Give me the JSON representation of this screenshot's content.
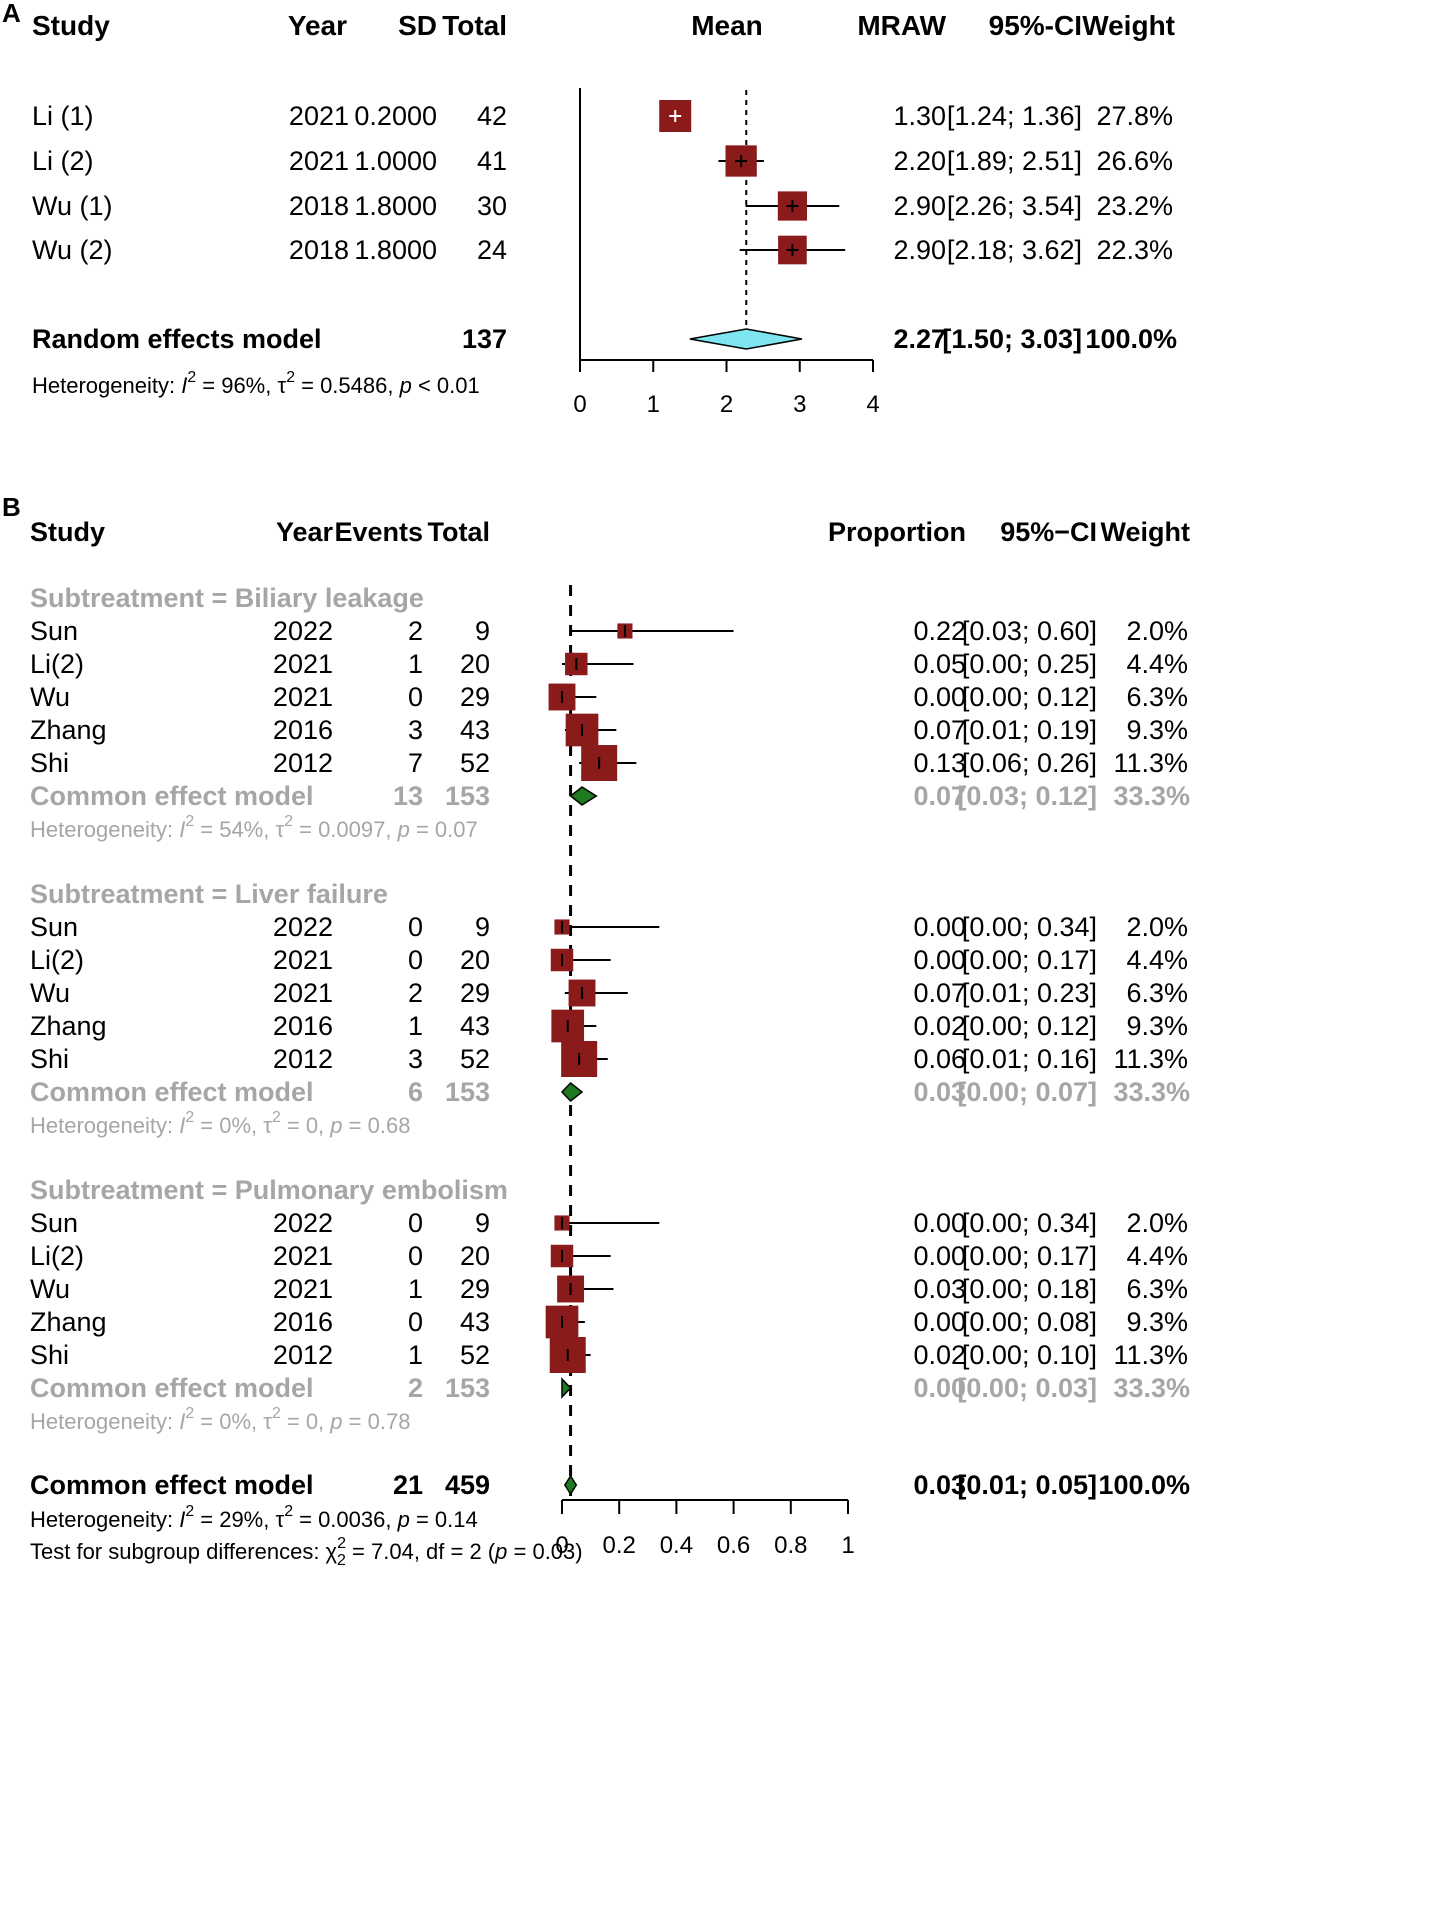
{
  "chart_data": [
    {
      "type": "forest",
      "panel_label": "A",
      "columns": {
        "study": "Study",
        "year": "Year",
        "sd": "SD",
        "total": "Total",
        "plot": "Mean",
        "estimate": "MRAW",
        "ci": "95%-CI",
        "weight": "Weight"
      },
      "studies": [
        {
          "study": "Li (1)",
          "year": "2021",
          "sd": "0.2000",
          "total": "42",
          "est": 1.3,
          "lo": 1.24,
          "hi": 1.36,
          "est_text": "1.30",
          "ci_text": "[1.24; 1.36]",
          "weight_text": "27.8%"
        },
        {
          "study": "Li (2)",
          "year": "2021",
          "sd": "1.0000",
          "total": "41",
          "est": 2.2,
          "lo": 1.89,
          "hi": 2.51,
          "est_text": "2.20",
          "ci_text": "[1.89; 2.51]",
          "weight_text": "26.6%"
        },
        {
          "study": "Wu (1)",
          "year": "2018",
          "sd": "1.8000",
          "total": "30",
          "est": 2.9,
          "lo": 2.26,
          "hi": 3.54,
          "est_text": "2.90",
          "ci_text": "[2.26; 3.54]",
          "weight_text": "23.2%"
        },
        {
          "study": "Wu (2)",
          "year": "2018",
          "sd": "1.8000",
          "total": "24",
          "est": 2.9,
          "lo": 2.18,
          "hi": 3.62,
          "est_text": "2.90",
          "ci_text": "[2.18; 3.62]",
          "weight_text": "22.3%"
        }
      ],
      "summary": {
        "label": "Random effects model",
        "total": "137",
        "est": 2.27,
        "lo": 1.5,
        "hi": 3.03,
        "est_text": "2.27",
        "ci_text": "[1.50; 3.03]",
        "weight_text": "100.0%"
      },
      "heterogeneity": {
        "prefix": "Heterogeneity: ",
        "I2_symbol": "I",
        "I2_sup": "2",
        "I2_value": " = 96%, ",
        "tau_symbol": "τ",
        "tau_sup": "2",
        "tau_value": " = 0.5486, ",
        "p_symbol": "p",
        "p_value": " < 0.01"
      },
      "axis": {
        "xlim": [
          0,
          4
        ],
        "ticks": [
          "0",
          "1",
          "2",
          "3",
          "4"
        ],
        "reference_line": 2.27
      },
      "colors": {
        "square": "#8b1a1a",
        "diamond": "#7fe5f0"
      }
    },
    {
      "type": "forest",
      "panel_label": "B",
      "columns": {
        "study": "Study",
        "year": "Year",
        "events": "Events",
        "total": "Total",
        "estimate": "Proportion",
        "ci": "95%−CI",
        "weight": "Weight"
      },
      "subgroups": [
        {
          "title": "Subtreatment = Biliary leakage",
          "studies": [
            {
              "study": "Sun",
              "year": "2022",
              "events": "2",
              "total": "9",
              "est": 0.22,
              "lo": 0.03,
              "hi": 0.6,
              "est_text": "0.22",
              "ci_text": "[0.03; 0.60]",
              "weight_text": "2.0%"
            },
            {
              "study": "Li(2)",
              "year": "2021",
              "events": "1",
              "total": "20",
              "est": 0.05,
              "lo": 0.0,
              "hi": 0.25,
              "est_text": "0.05",
              "ci_text": "[0.00; 0.25]",
              "weight_text": "4.4%"
            },
            {
              "study": "Wu",
              "year": "2021",
              "events": "0",
              "total": "29",
              "est": 0.0,
              "lo": 0.0,
              "hi": 0.12,
              "est_text": "0.00",
              "ci_text": "[0.00; 0.12]",
              "weight_text": "6.3%"
            },
            {
              "study": "Zhang",
              "year": "2016",
              "events": "3",
              "total": "43",
              "est": 0.07,
              "lo": 0.01,
              "hi": 0.19,
              "est_text": "0.07",
              "ci_text": "[0.01; 0.19]",
              "weight_text": "9.3%"
            },
            {
              "study": "Shi",
              "year": "2012",
              "events": "7",
              "total": "52",
              "est": 0.13,
              "lo": 0.06,
              "hi": 0.26,
              "est_text": "0.13",
              "ci_text": "[0.06; 0.26]",
              "weight_text": "11.3%"
            }
          ],
          "model": {
            "label": "Common effect model",
            "events": "13",
            "total": "153",
            "est": 0.07,
            "lo": 0.03,
            "hi": 0.12,
            "est_text": "0.07",
            "ci_text": "[0.03; 0.12]",
            "weight_text": "33.3%"
          },
          "heterogeneity": {
            "prefix": "Heterogeneity: ",
            "I2_value": " = 54%, ",
            "tau_value": " = 0.0097, ",
            "p_value": " = 0.07"
          }
        },
        {
          "title": "Subtreatment = Liver failure",
          "studies": [
            {
              "study": "Sun",
              "year": "2022",
              "events": "0",
              "total": "9",
              "est": 0.0,
              "lo": 0.0,
              "hi": 0.34,
              "est_text": "0.00",
              "ci_text": "[0.00; 0.34]",
              "weight_text": "2.0%"
            },
            {
              "study": "Li(2)",
              "year": "2021",
              "events": "0",
              "total": "20",
              "est": 0.0,
              "lo": 0.0,
              "hi": 0.17,
              "est_text": "0.00",
              "ci_text": "[0.00; 0.17]",
              "weight_text": "4.4%"
            },
            {
              "study": "Wu",
              "year": "2021",
              "events": "2",
              "total": "29",
              "est": 0.07,
              "lo": 0.01,
              "hi": 0.23,
              "est_text": "0.07",
              "ci_text": "[0.01; 0.23]",
              "weight_text": "6.3%"
            },
            {
              "study": "Zhang",
              "year": "2016",
              "events": "1",
              "total": "43",
              "est": 0.02,
              "lo": 0.0,
              "hi": 0.12,
              "est_text": "0.02",
              "ci_text": "[0.00; 0.12]",
              "weight_text": "9.3%"
            },
            {
              "study": "Shi",
              "year": "2012",
              "events": "3",
              "total": "52",
              "est": 0.06,
              "lo": 0.01,
              "hi": 0.16,
              "est_text": "0.06",
              "ci_text": "[0.01; 0.16]",
              "weight_text": "11.3%"
            }
          ],
          "model": {
            "label": "Common effect model",
            "events": "6",
            "total": "153",
            "est": 0.03,
            "lo": 0.0,
            "hi": 0.07,
            "est_text": "0.03",
            "ci_text": "[0.00; 0.07]",
            "weight_text": "33.3%"
          },
          "heterogeneity": {
            "prefix": "Heterogeneity: ",
            "I2_value": " = 0%, ",
            "tau_value": " = 0, ",
            "p_value": " = 0.68"
          }
        },
        {
          "title": "Subtreatment = Pulmonary embolism",
          "studies": [
            {
              "study": "Sun",
              "year": "2022",
              "events": "0",
              "total": "9",
              "est": 0.0,
              "lo": 0.0,
              "hi": 0.34,
              "est_text": "0.00",
              "ci_text": "[0.00; 0.34]",
              "weight_text": "2.0%"
            },
            {
              "study": "Li(2)",
              "year": "2021",
              "events": "0",
              "total": "20",
              "est": 0.0,
              "lo": 0.0,
              "hi": 0.17,
              "est_text": "0.00",
              "ci_text": "[0.00; 0.17]",
              "weight_text": "4.4%"
            },
            {
              "study": "Wu",
              "year": "2021",
              "events": "1",
              "total": "29",
              "est": 0.03,
              "lo": 0.0,
              "hi": 0.18,
              "est_text": "0.03",
              "ci_text": "[0.00; 0.18]",
              "weight_text": "6.3%"
            },
            {
              "study": "Zhang",
              "year": "2016",
              "events": "0",
              "total": "43",
              "est": 0.0,
              "lo": 0.0,
              "hi": 0.08,
              "est_text": "0.00",
              "ci_text": "[0.00; 0.08]",
              "weight_text": "9.3%"
            },
            {
              "study": "Shi",
              "year": "2012",
              "events": "1",
              "total": "52",
              "est": 0.02,
              "lo": 0.0,
              "hi": 0.1,
              "est_text": "0.02",
              "ci_text": "[0.00; 0.10]",
              "weight_text": "11.3%"
            }
          ],
          "model": {
            "label": "Common effect model",
            "events": "2",
            "total": "153",
            "est": 0.0,
            "lo": 0.0,
            "hi": 0.03,
            "est_text": "0.00",
            "ci_text": "[0.00; 0.03]",
            "weight_text": "33.3%"
          },
          "heterogeneity": {
            "prefix": "Heterogeneity: ",
            "I2_value": " = 0%, ",
            "tau_value": " = 0, ",
            "p_value": " = 0.78"
          }
        }
      ],
      "overall": {
        "label": "Common effect model",
        "events": "21",
        "total": "459",
        "est": 0.03,
        "lo": 0.01,
        "hi": 0.05,
        "est_text": "0.03",
        "ci_text": "[0.01; 0.05]",
        "weight_text": "100.0%"
      },
      "overall_heterogeneity": {
        "prefix": "Heterogeneity: ",
        "I2_value": " = 29%, ",
        "tau_value": " = 0.0036, ",
        "p_value": " = 0.14"
      },
      "subgroup_test": {
        "prefix": "Test for subgroup differences: ",
        "chi_symbol": "χ",
        "chi_sup": "2",
        "chi_sub": "2",
        "chi_value": " = 7.04, df = 2 (",
        "p_symbol": "p",
        "p_value": " = 0.03)"
      },
      "axis": {
        "xlim": [
          0,
          1
        ],
        "ticks": [
          "0",
          "0.2",
          "0.4",
          "0.6",
          "0.8",
          "1"
        ],
        "reference_line": 0.03
      },
      "colors": {
        "square": "#8b1a1a",
        "diamond": "#1e7a1e",
        "grey_text": "#a6a6a6"
      }
    }
  ]
}
